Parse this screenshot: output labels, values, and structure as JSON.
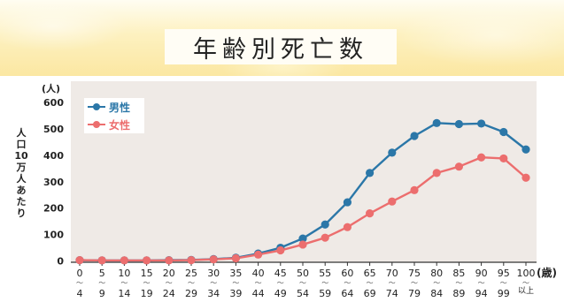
{
  "title": "年齢別死亡数",
  "chart_data": {
    "type": "line",
    "title": "年齢別死亡数",
    "ylabel": "人口10万人あたり",
    "yunit": "(人)",
    "xunit": "(歳)",
    "ylim": [
      0,
      600
    ],
    "yticks": [
      "0",
      "100",
      "200",
      "300",
      "400",
      "500",
      "600"
    ],
    "grid": false,
    "legend_position": "top-left",
    "categories": [
      {
        "top": "0",
        "bottom": "4"
      },
      {
        "top": "5",
        "bottom": "9"
      },
      {
        "top": "10",
        "bottom": "14"
      },
      {
        "top": "15",
        "bottom": "19"
      },
      {
        "top": "20",
        "bottom": "24"
      },
      {
        "top": "25",
        "bottom": "29"
      },
      {
        "top": "30",
        "bottom": "34"
      },
      {
        "top": "35",
        "bottom": "39"
      },
      {
        "top": "40",
        "bottom": "44"
      },
      {
        "top": "45",
        "bottom": "49"
      },
      {
        "top": "50",
        "bottom": "54"
      },
      {
        "top": "55",
        "bottom": "59"
      },
      {
        "top": "60",
        "bottom": "64"
      },
      {
        "top": "65",
        "bottom": "69"
      },
      {
        "top": "70",
        "bottom": "74"
      },
      {
        "top": "75",
        "bottom": "79"
      },
      {
        "top": "80",
        "bottom": "84"
      },
      {
        "top": "85",
        "bottom": "89"
      },
      {
        "top": "90",
        "bottom": "94"
      },
      {
        "top": "95",
        "bottom": "99"
      },
      {
        "top": "100",
        "bottom": "以上"
      }
    ],
    "series": [
      {
        "name": "男性",
        "color": "#2b77a8",
        "values": [
          3,
          2,
          2,
          2,
          3,
          4,
          7,
          12,
          28,
          50,
          85,
          138,
          222,
          333,
          410,
          473,
          522,
          518,
          520,
          488,
          422
        ]
      },
      {
        "name": "女性",
        "color": "#ec6e6e",
        "values": [
          3,
          2,
          2,
          2,
          2,
          3,
          6,
          10,
          24,
          40,
          62,
          88,
          128,
          180,
          225,
          268,
          333,
          357,
          392,
          388,
          315
        ]
      }
    ]
  },
  "colors": {
    "plot_bg": "#efeae6",
    "axis": "#333333"
  }
}
